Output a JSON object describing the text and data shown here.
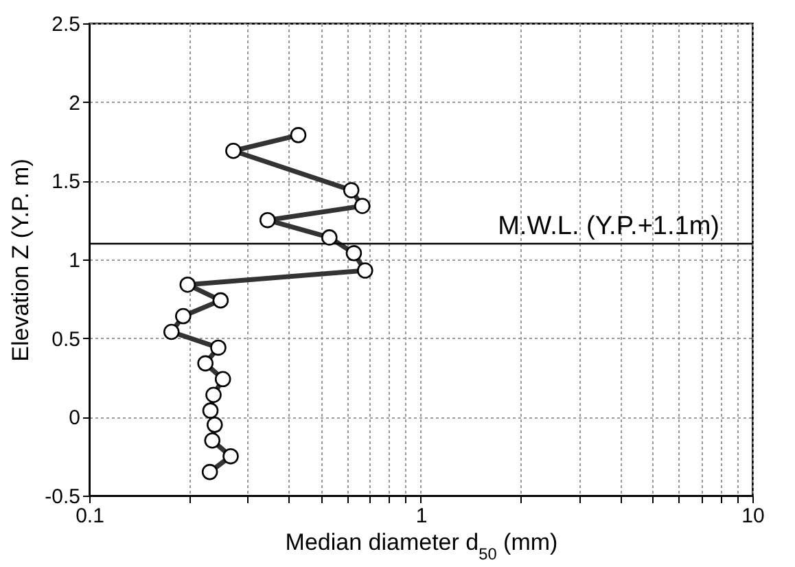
{
  "chart_data": {
    "type": "line",
    "xlabel": "Median diameter d$_{50}$ (mm)",
    "ylabel": "Elevation Z (Y.P. m)",
    "x": [
      0.427,
      0.272,
      0.617,
      0.666,
      0.345,
      0.53,
      0.628,
      0.679,
      0.198,
      0.249,
      0.192,
      0.177,
      0.245,
      0.224,
      0.253,
      0.237,
      0.232,
      0.239,
      0.235,
      0.267,
      0.231
    ],
    "series": [
      {
        "color": "#333333",
        "values": [
          1.79,
          1.69,
          1.44,
          1.34,
          1.25,
          1.14,
          1.04,
          0.93,
          0.84,
          0.74,
          0.64,
          0.54,
          0.44,
          0.34,
          0.24,
          0.14,
          0.04,
          -0.05,
          -0.15,
          -0.25,
          -0.35
        ]
      }
    ],
    "log": "x",
    "xlim": [
      0.1,
      10
    ],
    "ylim": [
      -0.5,
      2.5
    ],
    "xticks": [
      0.1,
      {
        "value": 0.2,
        "label": null
      },
      {
        "value": 0.3,
        "label": null
      },
      {
        "value": 0.4,
        "label": null
      },
      {
        "value": 0.5,
        "label": null
      },
      {
        "value": 0.6,
        "label": null
      },
      {
        "value": 0.7,
        "label": null
      },
      {
        "value": 0.8,
        "label": null
      },
      {
        "value": 0.9,
        "label": null
      },
      1,
      {
        "value": 2,
        "label": null
      },
      {
        "value": 3,
        "label": null
      },
      {
        "value": 4,
        "label": null
      },
      {
        "value": 5,
        "label": null
      },
      {
        "value": 6,
        "label": null
      },
      {
        "value": 7,
        "label": null
      },
      {
        "value": 8,
        "label": null
      },
      {
        "value": 9,
        "label": null
      },
      10
    ],
    "yticks": [
      -0.5,
      0,
      0.5,
      1,
      1.5,
      2,
      2.5
    ],
    "ref_lines": [
      {
        "axis": "y",
        "value": 1.1,
        "label": "M.W.L. (Y.P.+1.1m)",
        "color": "#000000"
      }
    ],
    "grid": true,
    "marker": "circle",
    "line_style": "solid"
  }
}
